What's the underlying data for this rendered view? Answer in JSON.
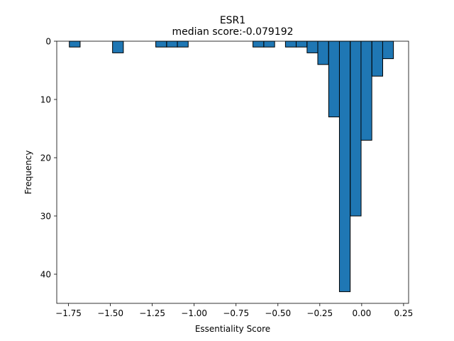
{
  "chart_data": {
    "type": "bar",
    "title": "ESR1",
    "subtitle": "median score:-0.079192",
    "xlabel": "Essentiality Score",
    "ylabel": "Frequency",
    "xlim": [
      -1.82,
      0.28
    ],
    "ylim": [
      0,
      45
    ],
    "y_inverted": true,
    "bin_width": 0.0645,
    "x_ticks": [
      -1.75,
      -1.5,
      -1.25,
      -1.0,
      -0.75,
      -0.5,
      -0.25,
      0.0,
      0.25
    ],
    "x_tick_labels": [
      "−1.75",
      "−1.50",
      "−1.25",
      "−1.00",
      "−0.75",
      "−0.50",
      "−0.25",
      "0.00",
      "0.25"
    ],
    "y_ticks": [
      0,
      10,
      20,
      30,
      40
    ],
    "y_tick_labels": [
      "0",
      "10",
      "20",
      "30",
      "40"
    ],
    "grid": false,
    "bar_color": "#1f77b4",
    "edge_color": "#000000",
    "bins": [
      {
        "x0": -1.745,
        "count": 1
      },
      {
        "x0": -1.487,
        "count": 2
      },
      {
        "x0": -1.229,
        "count": 1
      },
      {
        "x0": -1.164,
        "count": 1
      },
      {
        "x0": -1.1,
        "count": 1
      },
      {
        "x0": -0.649,
        "count": 1
      },
      {
        "x0": -0.584,
        "count": 1
      },
      {
        "x0": -0.455,
        "count": 1
      },
      {
        "x0": -0.391,
        "count": 1
      },
      {
        "x0": -0.326,
        "count": 2
      },
      {
        "x0": -0.262,
        "count": 4
      },
      {
        "x0": -0.197,
        "count": 13
      },
      {
        "x0": -0.133,
        "count": 43
      },
      {
        "x0": -0.068,
        "count": 30
      },
      {
        "x0": -0.004,
        "count": 17
      },
      {
        "x0": 0.061,
        "count": 6
      },
      {
        "x0": 0.125,
        "count": 3
      }
    ]
  }
}
